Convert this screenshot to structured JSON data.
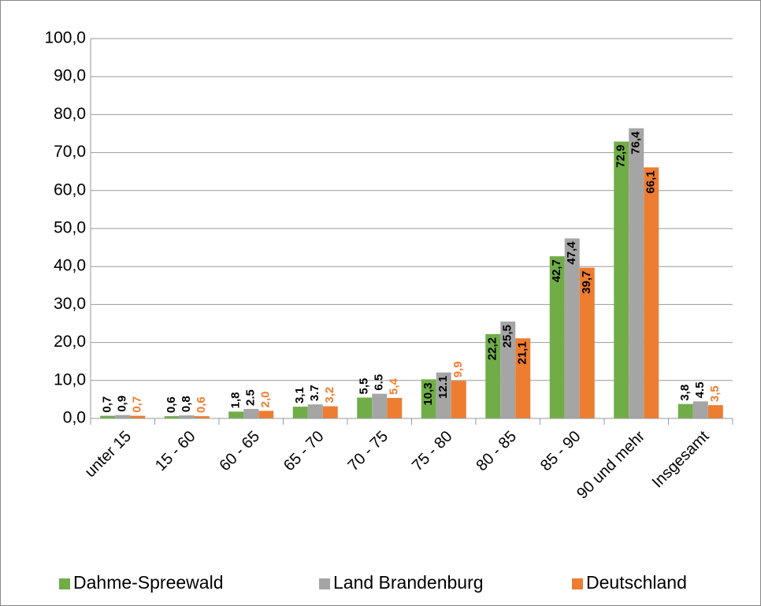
{
  "chart_data": {
    "type": "bar",
    "categories": [
      "unter 15",
      "15 - 60",
      "60 - 65",
      "65 - 70",
      "70 - 75",
      "75 - 80",
      "80 - 85",
      "85 - 90",
      "90  und mehr",
      "Insgesamt"
    ],
    "series": [
      {
        "name": "Dahme-Spreewald",
        "color": "#70ad47",
        "label_color": "#000000",
        "values": [
          0.7,
          0.6,
          1.8,
          3.1,
          5.5,
          10.3,
          22.2,
          42.7,
          72.9,
          3.8
        ],
        "value_labels": [
          "0,7",
          "0,6",
          "1,8",
          "3,1",
          "5,5",
          "10,3",
          "22,2",
          "42,7",
          "72,9",
          "3,8"
        ]
      },
      {
        "name": "Land Brandenburg",
        "color": "#a5a5a5",
        "label_color": "#000000",
        "values": [
          0.9,
          0.8,
          2.5,
          3.7,
          6.5,
          12.1,
          25.5,
          47.4,
          76.4,
          4.5
        ],
        "value_labels": [
          "0,9",
          "0,8",
          "2.5",
          "3.7",
          "6.5",
          "12.1",
          "25,5",
          "47,4",
          "76,4",
          "4.5"
        ]
      },
      {
        "name": "Deutschland",
        "color": "#ed7d31",
        "label_color": "#ed7d31",
        "values": [
          0.7,
          0.6,
          2.0,
          3.2,
          5.4,
          9.9,
          21.1,
          39.7,
          66.1,
          3.5
        ],
        "value_labels": [
          "0,7",
          "0,6",
          "2,0",
          "3,2",
          "5,4",
          "9,9",
          "21,1",
          "39,7",
          "66,1",
          "3,5"
        ]
      }
    ],
    "ylim": [
      0,
      100
    ],
    "yticks": [
      {
        "value": 0,
        "label": "0,0"
      },
      {
        "value": 10,
        "label": "10,0"
      },
      {
        "value": 20,
        "label": "20,0"
      },
      {
        "value": 30,
        "label": "30,0"
      },
      {
        "value": 40,
        "label": "40,0"
      },
      {
        "value": 50,
        "label": "50,0"
      },
      {
        "value": 60,
        "label": "60,0"
      },
      {
        "value": 70,
        "label": "70,0"
      },
      {
        "value": 80,
        "label": "80,0"
      },
      {
        "value": 90,
        "label": "90,0"
      },
      {
        "value": 100,
        "label": "100,0"
      }
    ],
    "grid": true,
    "legend": "bottom"
  }
}
